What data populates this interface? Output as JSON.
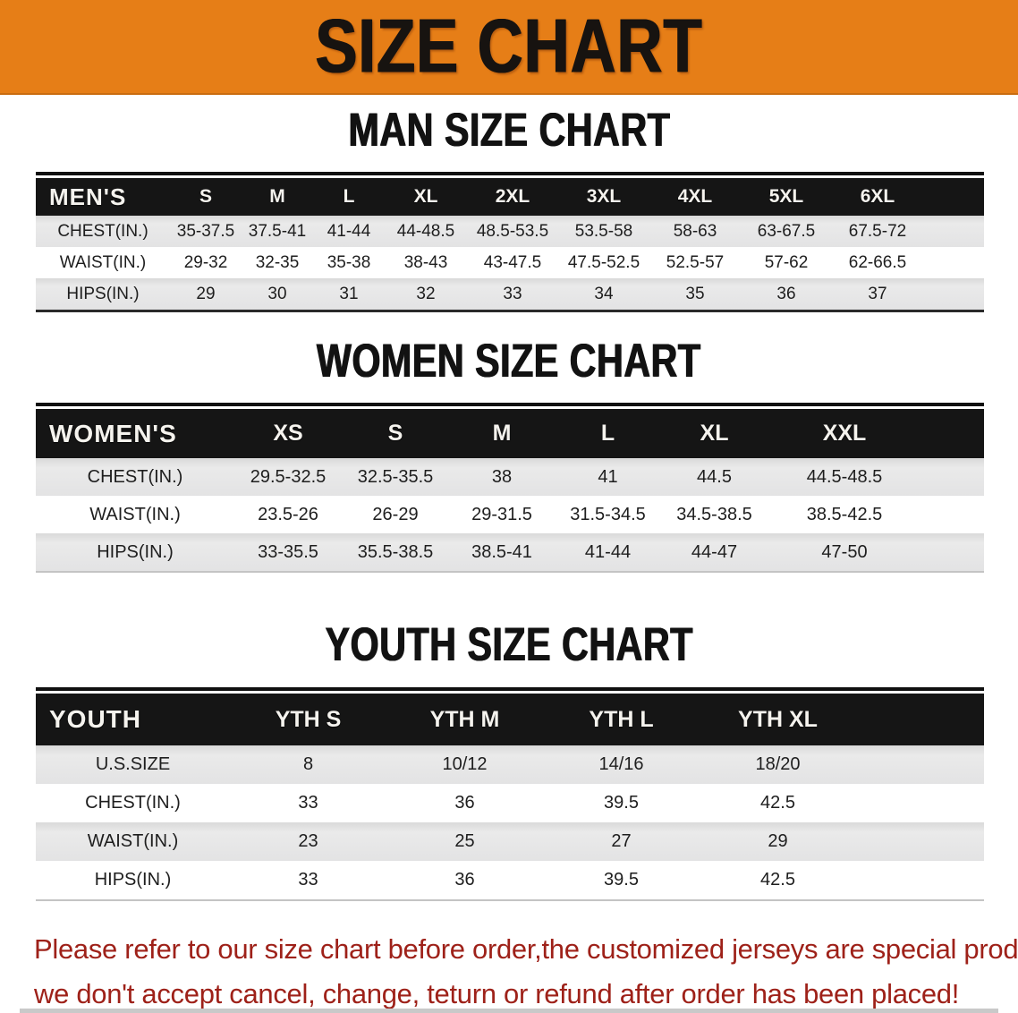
{
  "banner": {
    "title": "SIZE CHART",
    "bg_color": "#E67E17",
    "text_color": "#171310"
  },
  "sections": [
    {
      "title": "MAN SIZE CHART",
      "header_label": "MEN'S",
      "columns": [
        "S",
        "M",
        "L",
        "XL",
        "2XL",
        "3XL",
        "4XL",
        "5XL",
        "6XL"
      ],
      "rows": [
        {
          "label": "CHEST(IN.)",
          "values": [
            "35-37.5",
            "37.5-41",
            "41-44",
            "44-48.5",
            "48.5-53.5",
            "53.5-58",
            "58-63",
            "63-67.5",
            "67.5-72"
          ]
        },
        {
          "label": "WAIST(IN.)",
          "values": [
            "29-32",
            "32-35",
            "35-38",
            "38-43",
            "43-47.5",
            "47.5-52.5",
            "52.5-57",
            "57-62",
            "62-66.5"
          ]
        },
        {
          "label": "HIPS(IN.)",
          "values": [
            "29",
            "30",
            "31",
            "32",
            "33",
            "34",
            "35",
            "36",
            "37"
          ]
        }
      ]
    },
    {
      "title": "WOMEN SIZE CHART",
      "header_label": "WOMEN'S",
      "columns": [
        "XS",
        "S",
        "M",
        "L",
        "XL",
        "XXL"
      ],
      "rows": [
        {
          "label": "CHEST(IN.)",
          "values": [
            "29.5-32.5",
            "32.5-35.5",
            "38",
            "41",
            "44.5",
            "44.5-48.5"
          ]
        },
        {
          "label": "WAIST(IN.)",
          "values": [
            "23.5-26",
            "26-29",
            "29-31.5",
            "31.5-34.5",
            "34.5-38.5",
            "38.5-42.5"
          ]
        },
        {
          "label": "HIPS(IN.)",
          "values": [
            "33-35.5",
            "35.5-38.5",
            "38.5-41",
            "41-44",
            "44-47",
            "47-50"
          ]
        }
      ]
    },
    {
      "title": "YOUTH SIZE CHART",
      "header_label": "YOUTH",
      "columns": [
        "YTH S",
        "YTH M",
        "YTH L",
        "YTH XL"
      ],
      "rows": [
        {
          "label": "U.S.SIZE",
          "values": [
            "8",
            "10/12",
            "14/16",
            "18/20"
          ]
        },
        {
          "label": "CHEST(IN.)",
          "values": [
            "33",
            "36",
            "39.5",
            "42.5"
          ]
        },
        {
          "label": "WAIST(IN.)",
          "values": [
            "23",
            "25",
            "27",
            "29"
          ]
        },
        {
          "label": "HIPS(IN.)",
          "values": [
            "33",
            "36",
            "39.5",
            "42.5"
          ]
        }
      ]
    }
  ],
  "footer": {
    "line1": "Please refer to our size chart before order,the customized jerseys are special products,",
    "line2": "we don't accept cancel, change, teturn or refund after order has been placed!",
    "text_color": "#9e2119"
  },
  "chart_data": [
    {
      "type": "table",
      "title": "MAN SIZE CHART",
      "row_header": "MEN'S",
      "categories": [
        "S",
        "M",
        "L",
        "XL",
        "2XL",
        "3XL",
        "4XL",
        "5XL",
        "6XL"
      ],
      "series": [
        {
          "name": "CHEST(IN.)",
          "values": [
            "35-37.5",
            "37.5-41",
            "41-44",
            "44-48.5",
            "48.5-53.5",
            "53.5-58",
            "58-63",
            "63-67.5",
            "67.5-72"
          ]
        },
        {
          "name": "WAIST(IN.)",
          "values": [
            "29-32",
            "32-35",
            "35-38",
            "38-43",
            "43-47.5",
            "47.5-52.5",
            "52.5-57",
            "57-62",
            "62-66.5"
          ]
        },
        {
          "name": "HIPS(IN.)",
          "values": [
            29,
            30,
            31,
            32,
            33,
            34,
            35,
            36,
            37
          ]
        }
      ]
    },
    {
      "type": "table",
      "title": "WOMEN SIZE CHART",
      "row_header": "WOMEN'S",
      "categories": [
        "XS",
        "S",
        "M",
        "L",
        "XL",
        "XXL"
      ],
      "series": [
        {
          "name": "CHEST(IN.)",
          "values": [
            "29.5-32.5",
            "32.5-35.5",
            "38",
            "41",
            "44.5",
            "44.5-48.5"
          ]
        },
        {
          "name": "WAIST(IN.)",
          "values": [
            "23.5-26",
            "26-29",
            "29-31.5",
            "31.5-34.5",
            "34.5-38.5",
            "38.5-42.5"
          ]
        },
        {
          "name": "HIPS(IN.)",
          "values": [
            "33-35.5",
            "35.5-38.5",
            "38.5-41",
            "41-44",
            "44-47",
            "47-50"
          ]
        }
      ]
    },
    {
      "type": "table",
      "title": "YOUTH SIZE CHART",
      "row_header": "YOUTH",
      "categories": [
        "YTH S",
        "YTH M",
        "YTH L",
        "YTH XL"
      ],
      "series": [
        {
          "name": "U.S.SIZE",
          "values": [
            "8",
            "10/12",
            "14/16",
            "18/20"
          ]
        },
        {
          "name": "CHEST(IN.)",
          "values": [
            33,
            36,
            39.5,
            42.5
          ]
        },
        {
          "name": "WAIST(IN.)",
          "values": [
            23,
            25,
            27,
            29
          ]
        },
        {
          "name": "HIPS(IN.)",
          "values": [
            33,
            36,
            39.5,
            42.5
          ]
        }
      ]
    }
  ]
}
